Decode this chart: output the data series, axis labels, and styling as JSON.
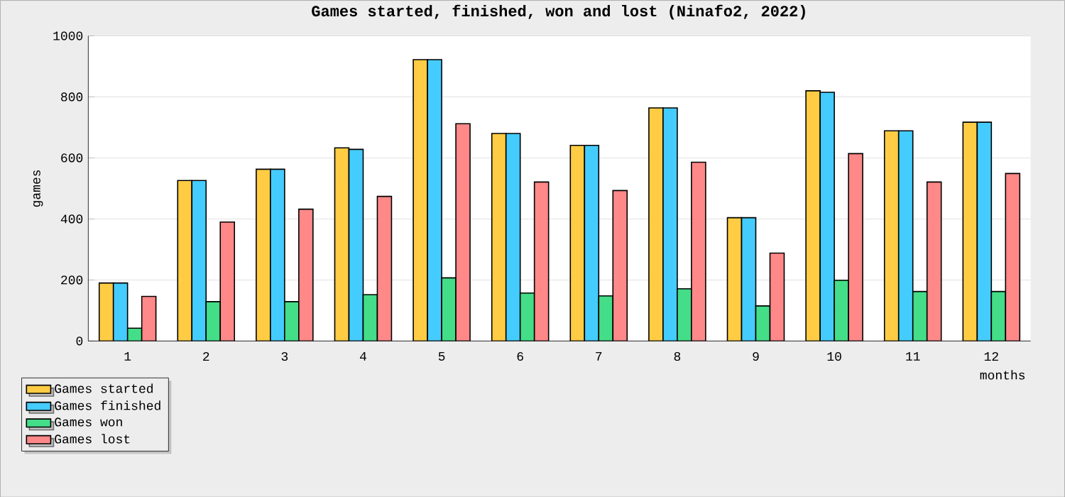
{
  "chart_data": {
    "type": "bar",
    "title": "Games started, finished, won and lost (Ninafo2, 2022)",
    "xlabel": "months",
    "ylabel": "games",
    "categories": [
      "1",
      "2",
      "3",
      "4",
      "5",
      "6",
      "7",
      "8",
      "9",
      "10",
      "11",
      "12"
    ],
    "series": [
      {
        "name": "Games started",
        "color": "#ffcc44",
        "values": [
          190,
          526,
          563,
          633,
          922,
          680,
          641,
          764,
          404,
          820,
          689,
          717
        ]
      },
      {
        "name": "Games finished",
        "color": "#44ccff",
        "values": [
          190,
          526,
          563,
          628,
          922,
          680,
          641,
          764,
          404,
          815,
          689,
          717
        ]
      },
      {
        "name": "Games won",
        "color": "#44dd88",
        "values": [
          42,
          129,
          129,
          152,
          207,
          157,
          148,
          171,
          115,
          199,
          162,
          162
        ]
      },
      {
        "name": "Games lost",
        "color": "#ff8888",
        "values": [
          146,
          390,
          432,
          474,
          712,
          521,
          493,
          586,
          288,
          614,
          521,
          549
        ]
      }
    ],
    "ylim": [
      0,
      1000
    ],
    "yticks": [
      0,
      200,
      400,
      600,
      800,
      1000
    ],
    "grid": "y",
    "legend": "bottom left"
  }
}
